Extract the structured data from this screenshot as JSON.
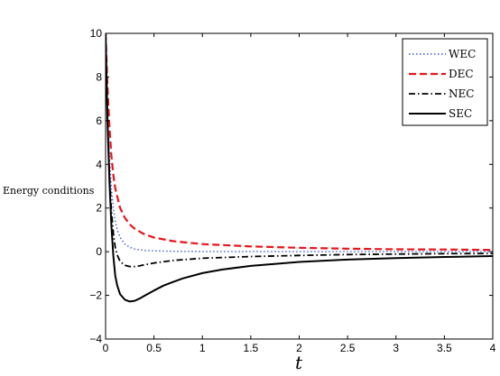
{
  "chart_data": {
    "type": "line",
    "title": "",
    "xlabel": "t",
    "ylabel": "Energy conditions",
    "xlim": [
      0,
      4
    ],
    "ylim": [
      -4,
      10
    ],
    "xticks": [
      "0",
      "0.5",
      "1",
      "1.5",
      "2",
      "2.5",
      "3",
      "3.5",
      "4"
    ],
    "yticks": [
      "−4",
      "−2",
      "0",
      "2",
      "4",
      "6",
      "8",
      "10"
    ],
    "grid": false,
    "legend_position": "top-right",
    "series": [
      {
        "name": "WEC",
        "color": "#3b5bd6",
        "style": "dotted",
        "x": [
          0.0,
          0.02,
          0.04,
          0.06,
          0.08,
          0.1,
          0.12,
          0.15,
          0.2,
          0.25,
          0.3,
          0.4,
          0.5,
          0.7,
          1.0,
          1.5,
          2.0,
          2.5,
          3.0,
          3.5,
          4.0
        ],
        "y": [
          10.0,
          6.5,
          4.3,
          2.9,
          2.0,
          1.4,
          1.0,
          0.65,
          0.35,
          0.2,
          0.12,
          0.06,
          0.04,
          0.02,
          0.01,
          0.01,
          0.0,
          0.0,
          0.0,
          0.0,
          0.0
        ]
      },
      {
        "name": "DEC",
        "color": "#e8141b",
        "style": "dashed",
        "x": [
          0.0,
          0.02,
          0.04,
          0.06,
          0.08,
          0.1,
          0.15,
          0.2,
          0.25,
          0.3,
          0.4,
          0.5,
          0.7,
          1.0,
          1.5,
          2.0,
          2.5,
          3.0,
          3.5,
          4.0
        ],
        "y": [
          10.0,
          7.5,
          5.7,
          4.4,
          3.5,
          2.9,
          2.0,
          1.55,
          1.25,
          1.05,
          0.8,
          0.65,
          0.48,
          0.35,
          0.24,
          0.18,
          0.14,
          0.11,
          0.1,
          0.08
        ]
      },
      {
        "name": "NEC",
        "color": "#000000",
        "style": "dashdot",
        "x": [
          0.0,
          0.02,
          0.04,
          0.06,
          0.08,
          0.1,
          0.12,
          0.15,
          0.2,
          0.25,
          0.3,
          0.35,
          0.4,
          0.5,
          0.7,
          1.0,
          1.5,
          2.0,
          2.5,
          3.0,
          3.5,
          4.0
        ],
        "y": [
          10.0,
          6.0,
          3.5,
          1.9,
          0.85,
          0.2,
          -0.15,
          -0.45,
          -0.62,
          -0.68,
          -0.68,
          -0.65,
          -0.6,
          -0.52,
          -0.4,
          -0.3,
          -0.22,
          -0.17,
          -0.13,
          -0.11,
          -0.09,
          -0.08
        ]
      },
      {
        "name": "SEC",
        "color": "#000000",
        "style": "solid",
        "x": [
          0.0,
          0.02,
          0.04,
          0.06,
          0.08,
          0.1,
          0.12,
          0.15,
          0.2,
          0.25,
          0.3,
          0.35,
          0.4,
          0.5,
          0.6,
          0.7,
          0.8,
          1.0,
          1.2,
          1.5,
          2.0,
          2.5,
          3.0,
          3.5,
          4.0
        ],
        "y": [
          10.0,
          6.0,
          3.2,
          1.2,
          -0.2,
          -1.1,
          -1.55,
          -1.95,
          -2.2,
          -2.28,
          -2.25,
          -2.15,
          -2.02,
          -1.78,
          -1.55,
          -1.38,
          -1.22,
          -0.98,
          -0.82,
          -0.65,
          -0.47,
          -0.36,
          -0.29,
          -0.24,
          -0.2
        ]
      }
    ]
  }
}
